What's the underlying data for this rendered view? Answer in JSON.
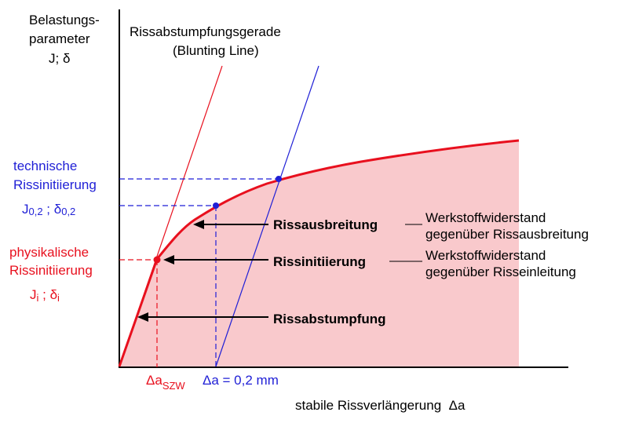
{
  "axes": {
    "y_label_line1": "Belastungs-",
    "y_label_line2": "parameter",
    "y_label_line3": "J; δ",
    "x_label": "stabile Rissverlängerung  Δa"
  },
  "blunting": {
    "title_line1": "Rissabstumpfungsgerade",
    "title_line2": "(Blunting Line)"
  },
  "technical": {
    "label_line1": "technische",
    "label_line2": "Rissinitiierung",
    "j_main": "J",
    "j_sub": "0,2",
    "sep": " ; ",
    "d_main": "δ",
    "d_sub": "0,2"
  },
  "physical": {
    "label_line1": "physikalische",
    "label_line2": "Rissinitiierung",
    "j_main": "J",
    "j_sub": "i",
    "sep": " ; ",
    "d_main": "δ",
    "d_sub": "i"
  },
  "x_ticks": {
    "szw_main": "Δa",
    "szw_sub": "SZW",
    "offset_label": "Δa = 0,2 mm"
  },
  "regions": {
    "propagation": "Rissausbreitung",
    "initiation": "Rissinitiierung",
    "blunting": "Rissabstumpfung"
  },
  "resistance": {
    "propagation_line1": "Werkstoffwiderstand",
    "propagation_line2": "gegenüber Rissausbreitung",
    "initiation_line1": "Werkstoffwiderstand",
    "initiation_line2": "gegenüber Risseinleitung"
  },
  "colors": {
    "red": "#e8101e",
    "blue": "#1f1fd6",
    "fill": "#f9c9cc",
    "black": "#000000"
  }
}
